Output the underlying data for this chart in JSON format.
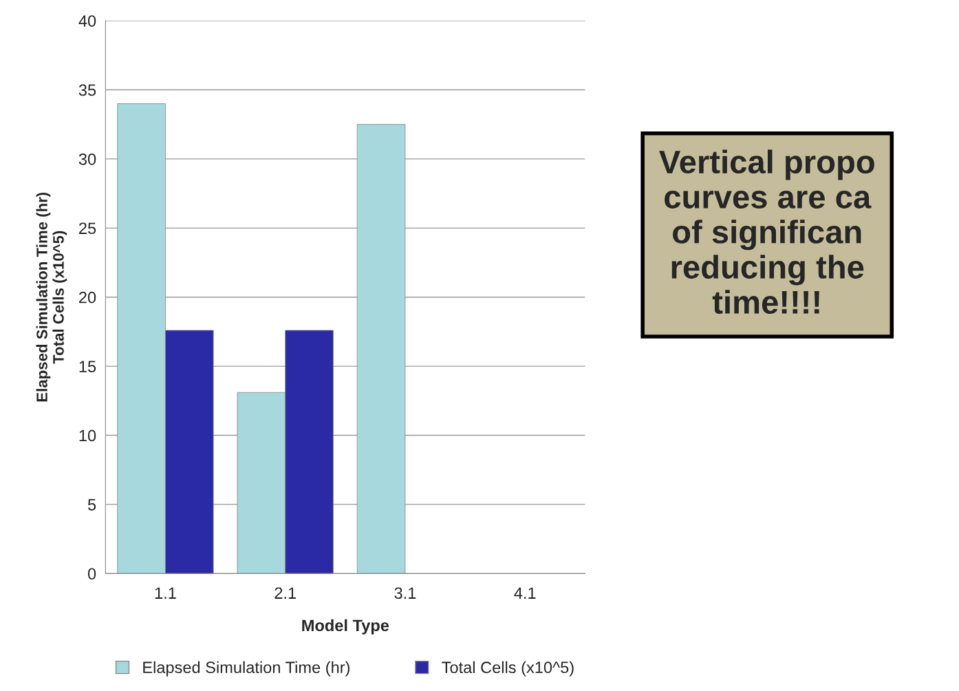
{
  "chart_data": {
    "type": "bar",
    "xlabel": "Model Type",
    "ylabel": "Elapsed Simulation Time (hr)\nTotal Cells (x10^5)",
    "categories": [
      "1.1",
      "2.1",
      "3.1",
      "4.1"
    ],
    "series": [
      {
        "name": "Elapsed Simulation Time (hr)",
        "color": "#a6d8de",
        "values": [
          34.0,
          13.1,
          32.5,
          null
        ]
      },
      {
        "name": "Total Cells (x10^5)",
        "color": "#2a2aa6",
        "values": [
          17.6,
          17.6,
          null,
          null
        ]
      }
    ],
    "ylim": [
      0,
      40
    ],
    "yticks": [
      0,
      5,
      10,
      15,
      20,
      25,
      30,
      35,
      40
    ],
    "grid": "y",
    "legend": "bottom",
    "annotations": [
      "Vertical propo\ncurves are ca\nof significan\nreducing the\ntime!!!!"
    ]
  }
}
